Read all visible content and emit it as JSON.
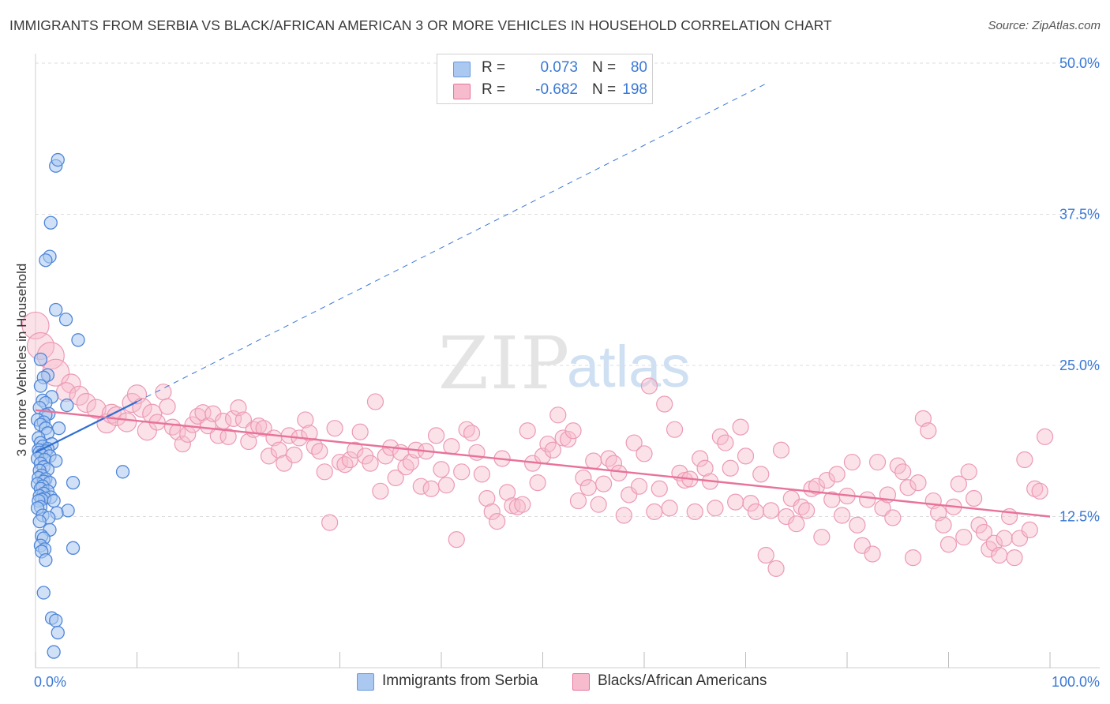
{
  "title": "IMMIGRANTS FROM SERBIA VS BLACK/AFRICAN AMERICAN 3 OR MORE VEHICLES IN HOUSEHOLD CORRELATION CHART",
  "source": "Source: ZipAtlas.com",
  "watermark": {
    "zip": "ZIP",
    "atlas": "atlas"
  },
  "legend": {
    "r_label": "R =",
    "n_label": "N =",
    "series": [
      {
        "name": "Immigrants from Serbia",
        "r": "0.073",
        "n": "80",
        "color": "#6699dd",
        "fill": "#aac8f0"
      },
      {
        "name": "Blacks/African Americans",
        "r": "-0.682",
        "n": "198",
        "color": "#e8729a",
        "fill": "#f6bccd"
      }
    ]
  },
  "chart_data": {
    "type": "scatter",
    "title": "IMMIGRANTS FROM SERBIA VS BLACK/AFRICAN AMERICAN 3 OR MORE VEHICLES IN HOUSEHOLD CORRELATION CHART",
    "xlabel": "",
    "ylabel": "3 or more Vehicles in Household",
    "xlim": [
      0,
      100
    ],
    "ylim": [
      0,
      50
    ],
    "x_tick_labels": [
      "0.0%",
      "100.0%"
    ],
    "y_tick_labels": [
      "12.5%",
      "25.0%",
      "37.5%",
      "50.0%"
    ],
    "y_ticks": [
      12.5,
      25.0,
      37.5,
      50.0
    ],
    "grid": true,
    "legend_position": "top-center",
    "series": [
      {
        "name": "Immigrants from Serbia",
        "color": "#3a78d6",
        "trend": {
          "x": [
            0,
            10
          ],
          "y": [
            17.8,
            22.0
          ],
          "extended_to": [
            72,
            48.3
          ]
        },
        "points": [
          [
            0.8,
            6.2
          ],
          [
            1.5,
            36.8
          ],
          [
            1.4,
            34
          ],
          [
            1.0,
            33.7
          ],
          [
            2.0,
            41.5
          ],
          [
            2.2,
            42.0
          ],
          [
            2.0,
            29.6
          ],
          [
            3.0,
            28.8
          ],
          [
            4.2,
            27.1
          ],
          [
            0.5,
            25.5
          ],
          [
            1.2,
            24.2
          ],
          [
            0.8,
            24.0
          ],
          [
            0.5,
            23.3
          ],
          [
            1.6,
            22.4
          ],
          [
            0.7,
            22.1
          ],
          [
            1.0,
            21.9
          ],
          [
            3.1,
            21.7
          ],
          [
            0.4,
            21.5
          ],
          [
            1.3,
            21.0
          ],
          [
            1.0,
            20.9
          ],
          [
            0.2,
            20.5
          ],
          [
            0.8,
            20.3
          ],
          [
            0.5,
            20.1
          ],
          [
            1.0,
            19.8
          ],
          [
            2.3,
            19.8
          ],
          [
            1.2,
            19.4
          ],
          [
            0.3,
            19.0
          ],
          [
            0.5,
            18.6
          ],
          [
            1.6,
            18.5
          ],
          [
            0.7,
            18.3
          ],
          [
            1.2,
            18.1
          ],
          [
            0.3,
            18.0
          ],
          [
            1.0,
            17.9
          ],
          [
            0.4,
            17.8
          ],
          [
            0.6,
            17.6
          ],
          [
            1.4,
            17.5
          ],
          [
            0.2,
            17.3
          ],
          [
            0.9,
            17.2
          ],
          [
            2.0,
            17.1
          ],
          [
            0.5,
            16.9
          ],
          [
            0.8,
            16.6
          ],
          [
            1.2,
            16.4
          ],
          [
            0.4,
            16.3
          ],
          [
            8.6,
            16.2
          ],
          [
            0.6,
            15.9
          ],
          [
            0.3,
            15.7
          ],
          [
            1.0,
            15.6
          ],
          [
            0.8,
            15.4
          ],
          [
            1.4,
            15.3
          ],
          [
            0.2,
            15.2
          ],
          [
            3.7,
            15.3
          ],
          [
            0.7,
            15.0
          ],
          [
            0.5,
            14.8
          ],
          [
            1.2,
            14.6
          ],
          [
            0.8,
            14.4
          ],
          [
            0.4,
            14.2
          ],
          [
            1.5,
            14.1
          ],
          [
            0.9,
            14.0
          ],
          [
            0.6,
            13.9
          ],
          [
            0.3,
            13.8
          ],
          [
            1.8,
            13.8
          ],
          [
            0.5,
            13.3
          ],
          [
            3.2,
            13.0
          ],
          [
            0.2,
            13.2
          ],
          [
            2.1,
            12.8
          ],
          [
            0.7,
            12.6
          ],
          [
            1.3,
            12.4
          ],
          [
            0.4,
            12.1
          ],
          [
            1.4,
            11.4
          ],
          [
            0.6,
            10.9
          ],
          [
            0.8,
            10.7
          ],
          [
            0.5,
            10.1
          ],
          [
            3.7,
            9.9
          ],
          [
            0.9,
            9.8
          ],
          [
            0.6,
            9.6
          ],
          [
            1.0,
            8.9
          ],
          [
            1.6,
            4.1
          ],
          [
            2.0,
            3.9
          ],
          [
            2.2,
            2.9
          ],
          [
            1.8,
            1.3
          ]
        ]
      },
      {
        "name": "Blacks/African Americans",
        "color": "#e8729a",
        "trend": {
          "x": [
            0,
            100
          ],
          "y": [
            21.3,
            12.5
          ]
        },
        "points": [
          [
            0.0,
            28.3
          ],
          [
            0.5,
            26.6
          ],
          [
            1.5,
            25.8
          ],
          [
            2.0,
            24.4
          ],
          [
            3.5,
            23.5
          ],
          [
            3.0,
            22.8
          ],
          [
            4.3,
            22.5
          ],
          [
            5.0,
            21.9
          ],
          [
            6.0,
            21.4
          ],
          [
            7.0,
            20.2
          ],
          [
            7.5,
            21.0
          ],
          [
            8.0,
            20.8
          ],
          [
            9.0,
            20.3
          ],
          [
            9.5,
            21.9
          ],
          [
            10.0,
            22.6
          ],
          [
            10.5,
            21.5
          ],
          [
            11.0,
            19.6
          ],
          [
            11.5,
            21.0
          ],
          [
            12.0,
            20.3
          ],
          [
            12.6,
            22.8
          ],
          [
            13.0,
            21.6
          ],
          [
            13.5,
            19.9
          ],
          [
            14.0,
            19.5
          ],
          [
            14.5,
            18.5
          ],
          [
            15.0,
            19.3
          ],
          [
            15.5,
            20.1
          ],
          [
            16.0,
            20.8
          ],
          [
            16.5,
            21.1
          ],
          [
            17.0,
            20.0
          ],
          [
            17.5,
            21.0
          ],
          [
            18.0,
            19.2
          ],
          [
            18.5,
            20.4
          ],
          [
            19.0,
            19.1
          ],
          [
            19.5,
            20.6
          ],
          [
            20.0,
            21.5
          ],
          [
            20.5,
            20.5
          ],
          [
            21.0,
            18.7
          ],
          [
            21.5,
            19.7
          ],
          [
            22.0,
            20.0
          ],
          [
            22.5,
            19.8
          ],
          [
            23.0,
            17.5
          ],
          [
            23.5,
            19.0
          ],
          [
            24.0,
            18.0
          ],
          [
            24.5,
            16.9
          ],
          [
            25.0,
            19.2
          ],
          [
            25.5,
            17.6
          ],
          [
            26.0,
            19.0
          ],
          [
            26.6,
            20.5
          ],
          [
            27.0,
            19.4
          ],
          [
            27.5,
            18.3
          ],
          [
            28.0,
            17.9
          ],
          [
            28.5,
            16.2
          ],
          [
            29.0,
            12.0
          ],
          [
            29.5,
            19.8
          ],
          [
            30.0,
            17.0
          ],
          [
            30.5,
            16.8
          ],
          [
            31.0,
            17.2
          ],
          [
            31.5,
            18.0
          ],
          [
            32.0,
            19.5
          ],
          [
            32.5,
            17.5
          ],
          [
            33.0,
            16.9
          ],
          [
            33.5,
            22.0
          ],
          [
            34.0,
            14.6
          ],
          [
            34.5,
            17.5
          ],
          [
            35.0,
            18.2
          ],
          [
            35.5,
            15.7
          ],
          [
            36.0,
            17.8
          ],
          [
            36.5,
            16.6
          ],
          [
            37.0,
            17.0
          ],
          [
            37.5,
            18.0
          ],
          [
            38.0,
            15.0
          ],
          [
            38.5,
            17.9
          ],
          [
            39.0,
            14.8
          ],
          [
            39.5,
            19.2
          ],
          [
            40.0,
            16.4
          ],
          [
            40.5,
            15.1
          ],
          [
            41.0,
            18.3
          ],
          [
            41.5,
            10.6
          ],
          [
            42.0,
            16.2
          ],
          [
            42.5,
            19.7
          ],
          [
            43.0,
            19.4
          ],
          [
            43.5,
            17.8
          ],
          [
            44.0,
            16.0
          ],
          [
            44.5,
            14.0
          ],
          [
            45.0,
            12.9
          ],
          [
            45.5,
            12.1
          ],
          [
            46.0,
            17.3
          ],
          [
            46.5,
            14.5
          ],
          [
            47.0,
            13.4
          ],
          [
            47.5,
            13.3
          ],
          [
            48.0,
            13.5
          ],
          [
            48.5,
            19.6
          ],
          [
            49.0,
            16.9
          ],
          [
            49.5,
            15.3
          ],
          [
            50.0,
            17.5
          ],
          [
            50.5,
            18.5
          ],
          [
            51.0,
            18.0
          ],
          [
            51.5,
            20.9
          ],
          [
            52.0,
            19.0
          ],
          [
            52.5,
            18.9
          ],
          [
            53.0,
            19.6
          ],
          [
            53.5,
            13.8
          ],
          [
            54.0,
            15.7
          ],
          [
            54.5,
            14.9
          ],
          [
            55.0,
            17.1
          ],
          [
            55.5,
            13.5
          ],
          [
            56.0,
            15.2
          ],
          [
            56.5,
            17.3
          ],
          [
            57.0,
            16.9
          ],
          [
            57.5,
            16.1
          ],
          [
            58.0,
            12.6
          ],
          [
            58.5,
            14.3
          ],
          [
            59.0,
            18.6
          ],
          [
            59.5,
            15.0
          ],
          [
            60.0,
            17.7
          ],
          [
            60.5,
            23.3
          ],
          [
            61.0,
            12.9
          ],
          [
            61.5,
            14.8
          ],
          [
            62.0,
            21.8
          ],
          [
            62.5,
            13.2
          ],
          [
            63.0,
            19.7
          ],
          [
            63.5,
            16.1
          ],
          [
            64.0,
            15.5
          ],
          [
            64.5,
            15.6
          ],
          [
            65.0,
            12.9
          ],
          [
            65.5,
            17.3
          ],
          [
            66.0,
            16.5
          ],
          [
            66.5,
            15.4
          ],
          [
            67.0,
            13.2
          ],
          [
            67.5,
            19.1
          ],
          [
            68.0,
            18.6
          ],
          [
            68.5,
            16.5
          ],
          [
            69.0,
            13.7
          ],
          [
            69.5,
            19.9
          ],
          [
            70.0,
            17.5
          ],
          [
            70.5,
            13.6
          ],
          [
            71.0,
            12.9
          ],
          [
            71.5,
            16.0
          ],
          [
            72.0,
            9.3
          ],
          [
            72.5,
            13.0
          ],
          [
            73.0,
            8.2
          ],
          [
            73.5,
            18.0
          ],
          [
            74.0,
            12.5
          ],
          [
            74.5,
            14.0
          ],
          [
            75.0,
            11.9
          ],
          [
            75.5,
            13.3
          ],
          [
            76.0,
            13.0
          ],
          [
            76.5,
            14.8
          ],
          [
            77.0,
            15.0
          ],
          [
            77.5,
            10.8
          ],
          [
            78.0,
            15.5
          ],
          [
            78.5,
            13.9
          ],
          [
            79.0,
            16.0
          ],
          [
            79.5,
            12.6
          ],
          [
            80.0,
            14.2
          ],
          [
            80.5,
            17.0
          ],
          [
            81.0,
            11.8
          ],
          [
            81.5,
            10.1
          ],
          [
            82.0,
            13.9
          ],
          [
            82.5,
            9.4
          ],
          [
            83.0,
            17.0
          ],
          [
            83.5,
            13.2
          ],
          [
            84.0,
            14.3
          ],
          [
            84.5,
            12.4
          ],
          [
            85.0,
            16.7
          ],
          [
            85.5,
            16.2
          ],
          [
            86.0,
            14.9
          ],
          [
            86.5,
            9.1
          ],
          [
            87.0,
            15.3
          ],
          [
            87.5,
            20.6
          ],
          [
            88.0,
            19.6
          ],
          [
            88.5,
            13.8
          ],
          [
            89.0,
            12.8
          ],
          [
            89.5,
            11.8
          ],
          [
            90.0,
            10.2
          ],
          [
            90.5,
            13.3
          ],
          [
            91.0,
            15.2
          ],
          [
            91.5,
            10.8
          ],
          [
            92.0,
            16.2
          ],
          [
            92.5,
            14.0
          ],
          [
            93.0,
            11.8
          ],
          [
            93.5,
            11.2
          ],
          [
            94.0,
            9.8
          ],
          [
            94.5,
            10.3
          ],
          [
            95.0,
            9.3
          ],
          [
            95.5,
            10.7
          ],
          [
            96.0,
            12.5
          ],
          [
            96.5,
            9.1
          ],
          [
            97.0,
            10.7
          ],
          [
            97.5,
            17.2
          ],
          [
            98.0,
            11.4
          ],
          [
            98.5,
            14.8
          ],
          [
            99.0,
            14.6
          ],
          [
            99.5,
            19.1
          ]
        ]
      }
    ]
  }
}
